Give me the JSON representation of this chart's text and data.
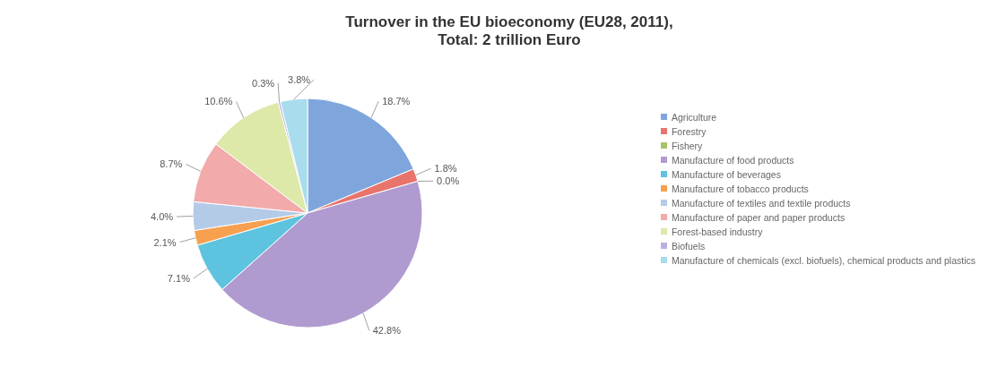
{
  "chart_data": {
    "type": "pie",
    "title": "Turnover in the EU bioeconomy (EU28, 2011),\nTotal: 2 trillion Euro",
    "categories": [
      "Agriculture",
      "Forestry",
      "Fishery",
      "Manufacture of food products",
      "Manufacture of beverages",
      "Manufacture of tobacco products",
      "Manufacture of textiles and textile products",
      "Manufacture of paper and paper products",
      "Forest-based industry",
      "Biofuels",
      "Manufacture of chemicals (excl. biofuels), chemical products and plastics"
    ],
    "values": [
      18.7,
      1.8,
      0.0,
      42.8,
      7.1,
      2.1,
      4.0,
      8.7,
      10.6,
      0.3,
      3.8
    ],
    "colors": [
      "#7fa6dc",
      "#e8746c",
      "#a8c46a",
      "#b09bd0",
      "#5ec3de",
      "#f7a050",
      "#b4cbe8",
      "#f2aaaa",
      "#dde9a8",
      "#bcaee0",
      "#a9dcec"
    ],
    "value_labels": [
      "18.7%",
      "1.8%",
      "0.0%",
      "42.8%",
      "7.1%",
      "2.1%",
      "4.0%",
      "8.7%",
      "10.6%",
      "0.3%",
      "3.8%"
    ],
    "legend": "right"
  }
}
